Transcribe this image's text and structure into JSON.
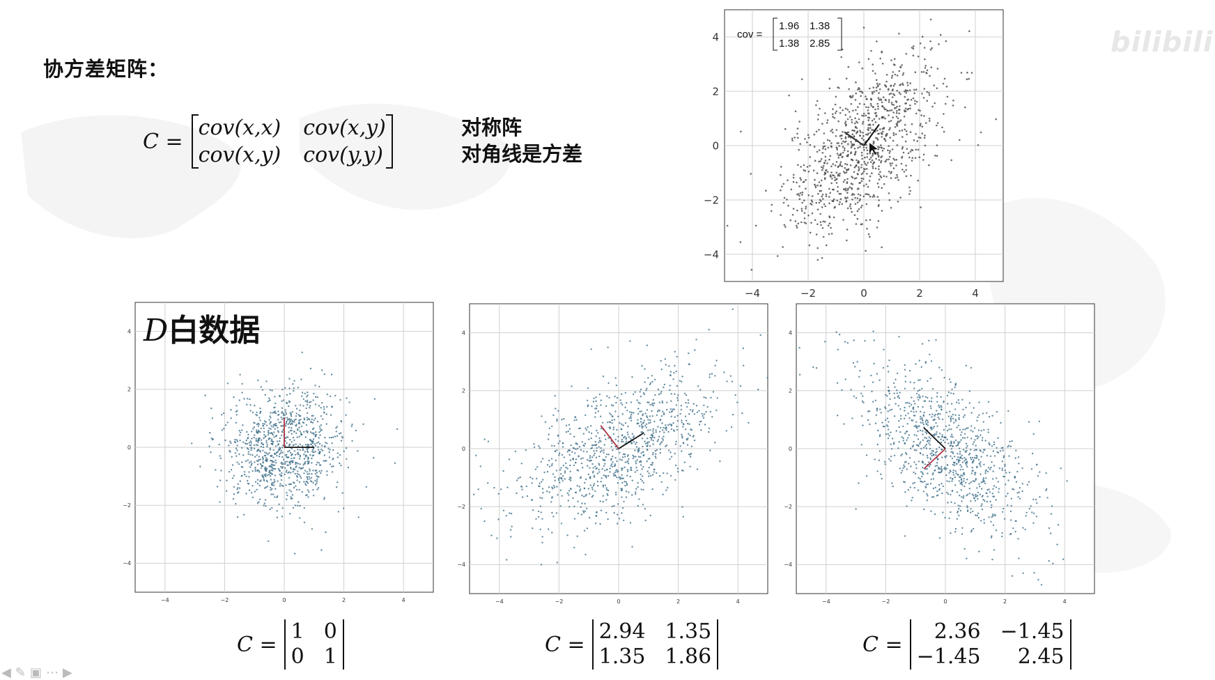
{
  "slide": {
    "title": "协方差矩阵：",
    "formula": {
      "lhs": "C =",
      "cells": [
        "cov(x,x)",
        "cov(x,y)",
        "cov(x,y)",
        "cov(y,y)"
      ]
    },
    "properties": [
      "对称阵",
      "对角线是方差"
    ],
    "white_data_label": {
      "symbol": "D",
      "text": "白数据"
    },
    "watermark": "bilibili"
  },
  "toolbar": {
    "icons": [
      "arrow-left-icon",
      "pen-icon",
      "slides-icon",
      "more-icon",
      "arrow-right-icon"
    ]
  },
  "chart_data": [
    {
      "id": "top-right",
      "type": "scatter",
      "title": "",
      "annotation": {
        "prefix": "cov =",
        "matrix": [
          "1.96",
          "1.38",
          "1.38",
          "2.85"
        ]
      },
      "xlim": [
        -5,
        5
      ],
      "ylim": [
        -5,
        5
      ],
      "xticks": [
        -4,
        -2,
        0,
        2,
        4
      ],
      "yticks": [
        -4,
        -2,
        0,
        2,
        4
      ],
      "grid": true,
      "covariance": [
        [
          1.96,
          1.38
        ],
        [
          1.38,
          2.85
        ]
      ],
      "n_points": 1000,
      "point_color": "#4a4a4a",
      "eigen_axes": [
        {
          "dx": 0.55,
          "dy": 0.78,
          "color": "#111111"
        },
        {
          "dx": -0.7,
          "dy": 0.5,
          "color": "#333333"
        }
      ]
    },
    {
      "id": "white",
      "type": "scatter",
      "xlim": [
        -5,
        5
      ],
      "ylim": [
        -5,
        5
      ],
      "xticks": [
        -4,
        -2,
        0,
        2,
        4
      ],
      "yticks": [
        -4,
        -2,
        0,
        2,
        4
      ],
      "grid": true,
      "covariance": [
        [
          1,
          0
        ],
        [
          0,
          1
        ]
      ],
      "n_points": 1000,
      "point_color": "#3f6f8a",
      "eigen_axes": [
        {
          "dx": 1.0,
          "dy": 0.0,
          "color": "#111111"
        },
        {
          "dx": 0.0,
          "dy": 1.0,
          "color": "#b03040"
        }
      ],
      "caption": {
        "lhs": "C =",
        "matrix": [
          "1",
          "0",
          "0",
          "1"
        ]
      }
    },
    {
      "id": "positive",
      "type": "scatter",
      "xlim": [
        -5,
        5
      ],
      "ylim": [
        -5,
        5
      ],
      "xticks": [
        -4,
        -2,
        0,
        2,
        4
      ],
      "yticks": [
        -4,
        -2,
        0,
        2,
        4
      ],
      "grid": true,
      "covariance": [
        [
          2.94,
          1.35
        ],
        [
          1.35,
          1.86
        ]
      ],
      "n_points": 1000,
      "point_color": "#3f6f8a",
      "eigen_axes": [
        {
          "dx": 0.85,
          "dy": 0.55,
          "color": "#111111"
        },
        {
          "dx": -0.6,
          "dy": 0.8,
          "color": "#b03040"
        }
      ],
      "caption": {
        "lhs": "C =",
        "matrix": [
          "2.94",
          "1.35",
          "1.35",
          "1.86"
        ]
      }
    },
    {
      "id": "negative",
      "type": "scatter",
      "xlim": [
        -5,
        5
      ],
      "ylim": [
        -5,
        5
      ],
      "xticks": [
        -4,
        -2,
        0,
        2,
        4
      ],
      "yticks": [
        -4,
        -2,
        0,
        2,
        4
      ],
      "grid": true,
      "covariance": [
        [
          2.36,
          -1.45
        ],
        [
          -1.45,
          2.45
        ]
      ],
      "n_points": 1000,
      "point_color": "#3f6f8a",
      "eigen_axes": [
        {
          "dx": -0.72,
          "dy": 0.72,
          "color": "#111111"
        },
        {
          "dx": -0.72,
          "dy": -0.7,
          "color": "#b03040"
        }
      ],
      "caption": {
        "lhs": "C =",
        "matrix": [
          "2.36",
          "−1.45",
          "−1.45",
          "2.45"
        ]
      }
    }
  ]
}
